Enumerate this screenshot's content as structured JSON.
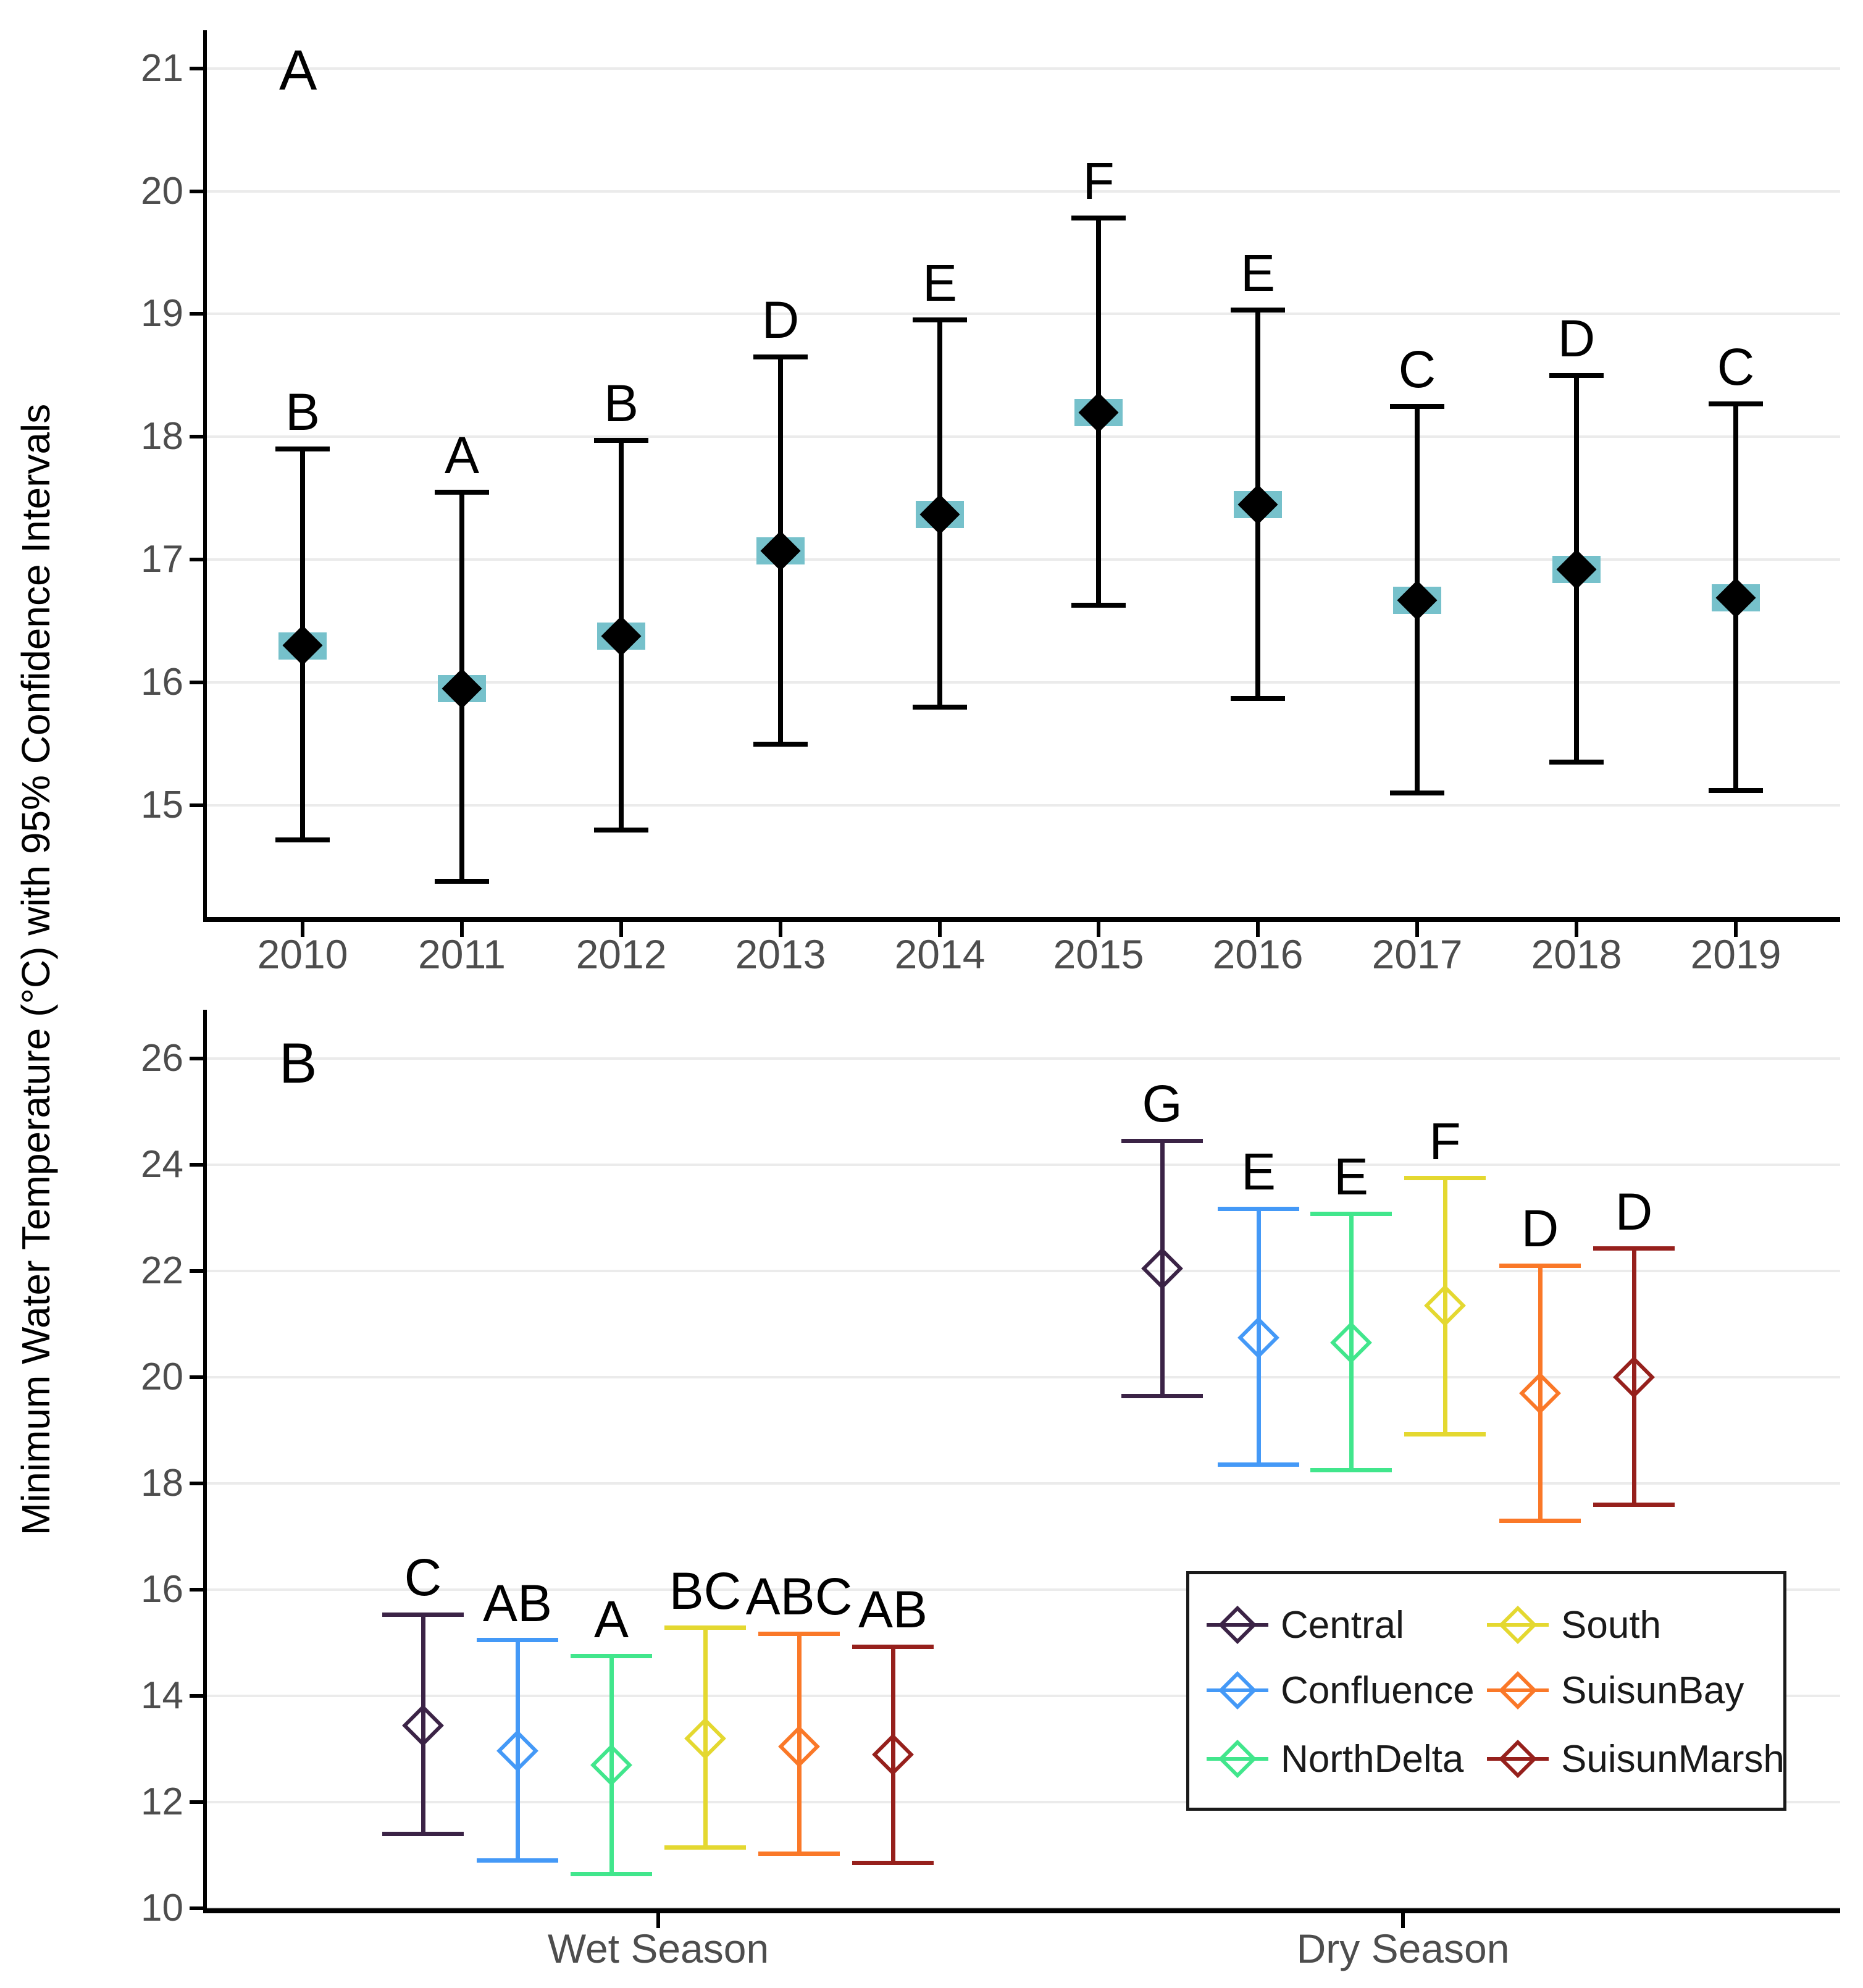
{
  "y_axis_title": "Minimum Water Temperature (°C) with 95% Confidence Intervals",
  "colors": {
    "point_black": "#000000",
    "inner_interval_teal": "#76C1CB",
    "gridline": "#EBEBEB",
    "axis_text": "#4D4D4D",
    "central": "#3B2346",
    "confluence": "#4499F7",
    "north_delta": "#41E68C",
    "south": "#E4D830",
    "suisun_bay": "#FA7828",
    "suisun_marsh": "#96201C"
  },
  "chart_data": [
    {
      "type": "pointrange",
      "panel_label": "A",
      "title": "",
      "xlabel": "",
      "ylabel": "Minimum Water Temperature (°C) with 95% Confidence Intervals",
      "grid": true,
      "y_ticks": [
        21,
        20,
        19,
        18,
        17,
        16,
        15
      ],
      "ylim": [
        14.09,
        21.31
      ],
      "categories": [
        "2010",
        "2011",
        "2012",
        "2013",
        "2014",
        "2015",
        "2016",
        "2017",
        "2018",
        "2019"
      ],
      "point_color": "#000000",
      "inner_interval_color": "#76C1CB",
      "inner_interval_half_width": 0.11,
      "points": [
        {
          "x": "2010",
          "mean": 16.3,
          "ci_low": 14.72,
          "ci_high": 17.9,
          "letter": "B"
        },
        {
          "x": "2011",
          "mean": 15.95,
          "ci_low": 14.38,
          "ci_high": 17.55,
          "letter": "A"
        },
        {
          "x": "2012",
          "mean": 16.38,
          "ci_low": 14.8,
          "ci_high": 17.97,
          "letter": "B"
        },
        {
          "x": "2013",
          "mean": 17.07,
          "ci_low": 15.5,
          "ci_high": 18.65,
          "letter": "D"
        },
        {
          "x": "2014",
          "mean": 17.37,
          "ci_low": 15.8,
          "ci_high": 18.95,
          "letter": "E"
        },
        {
          "x": "2015",
          "mean": 18.2,
          "ci_low": 16.63,
          "ci_high": 19.78,
          "letter": "F"
        },
        {
          "x": "2016",
          "mean": 17.45,
          "ci_low": 15.87,
          "ci_high": 19.03,
          "letter": "E"
        },
        {
          "x": "2017",
          "mean": 16.67,
          "ci_low": 15.1,
          "ci_high": 18.25,
          "letter": "C"
        },
        {
          "x": "2018",
          "mean": 16.92,
          "ci_low": 15.35,
          "ci_high": 18.5,
          "letter": "D"
        },
        {
          "x": "2019",
          "mean": 16.69,
          "ci_low": 15.12,
          "ci_high": 18.27,
          "letter": "C"
        }
      ]
    },
    {
      "type": "grouped_pointrange",
      "panel_label": "B",
      "title": "",
      "xlabel": "",
      "grid": true,
      "y_ticks": [
        26,
        24,
        22,
        20,
        18,
        16,
        14,
        12,
        10
      ],
      "ylim": [
        10.0,
        26.92
      ],
      "categories": [
        "Wet Season",
        "Dry Season"
      ],
      "legend_position": "bottom-right",
      "groups": [
        {
          "region": "Central",
          "color": "#3B2346",
          "wet": {
            "mean": 13.44,
            "ci_low": 11.4,
            "ci_high": 15.53,
            "letter": "C"
          },
          "dry": {
            "mean": 22.05,
            "ci_low": 19.65,
            "ci_high": 24.45,
            "letter": "G"
          }
        },
        {
          "region": "Confluence",
          "color": "#4499F7",
          "wet": {
            "mean": 12.97,
            "ci_low": 10.9,
            "ci_high": 15.05,
            "letter": "AB"
          },
          "dry": {
            "mean": 20.75,
            "ci_low": 18.35,
            "ci_high": 23.17,
            "letter": "E"
          }
        },
        {
          "region": "NorthDelta",
          "color": "#41E68C",
          "wet": {
            "mean": 12.7,
            "ci_low": 10.65,
            "ci_high": 14.75,
            "letter": "A"
          },
          "dry": {
            "mean": 20.65,
            "ci_low": 18.25,
            "ci_high": 23.08,
            "letter": "E"
          }
        },
        {
          "region": "South",
          "color": "#E4D830",
          "wet": {
            "mean": 13.2,
            "ci_low": 11.15,
            "ci_high": 15.28,
            "letter": "BC"
          },
          "dry": {
            "mean": 21.35,
            "ci_low": 18.93,
            "ci_high": 23.75,
            "letter": "F"
          }
        },
        {
          "region": "SuisunBay",
          "color": "#FA7828",
          "wet": {
            "mean": 13.05,
            "ci_low": 11.03,
            "ci_high": 15.17,
            "letter": "ABC"
          },
          "dry": {
            "mean": 19.7,
            "ci_low": 17.3,
            "ci_high": 22.1,
            "letter": "D"
          }
        },
        {
          "region": "SuisunMarsh",
          "color": "#96201C",
          "wet": {
            "mean": 12.9,
            "ci_low": 10.85,
            "ci_high": 14.93,
            "letter": "AB"
          },
          "dry": {
            "mean": 20.0,
            "ci_low": 17.6,
            "ci_high": 22.42,
            "letter": "D"
          }
        }
      ],
      "legend_entries_col1": [
        "Central",
        "Confluence",
        "NorthDelta"
      ],
      "legend_entries_col2": [
        "South",
        "SuisunBay",
        "SuisunMarsh"
      ]
    }
  ]
}
